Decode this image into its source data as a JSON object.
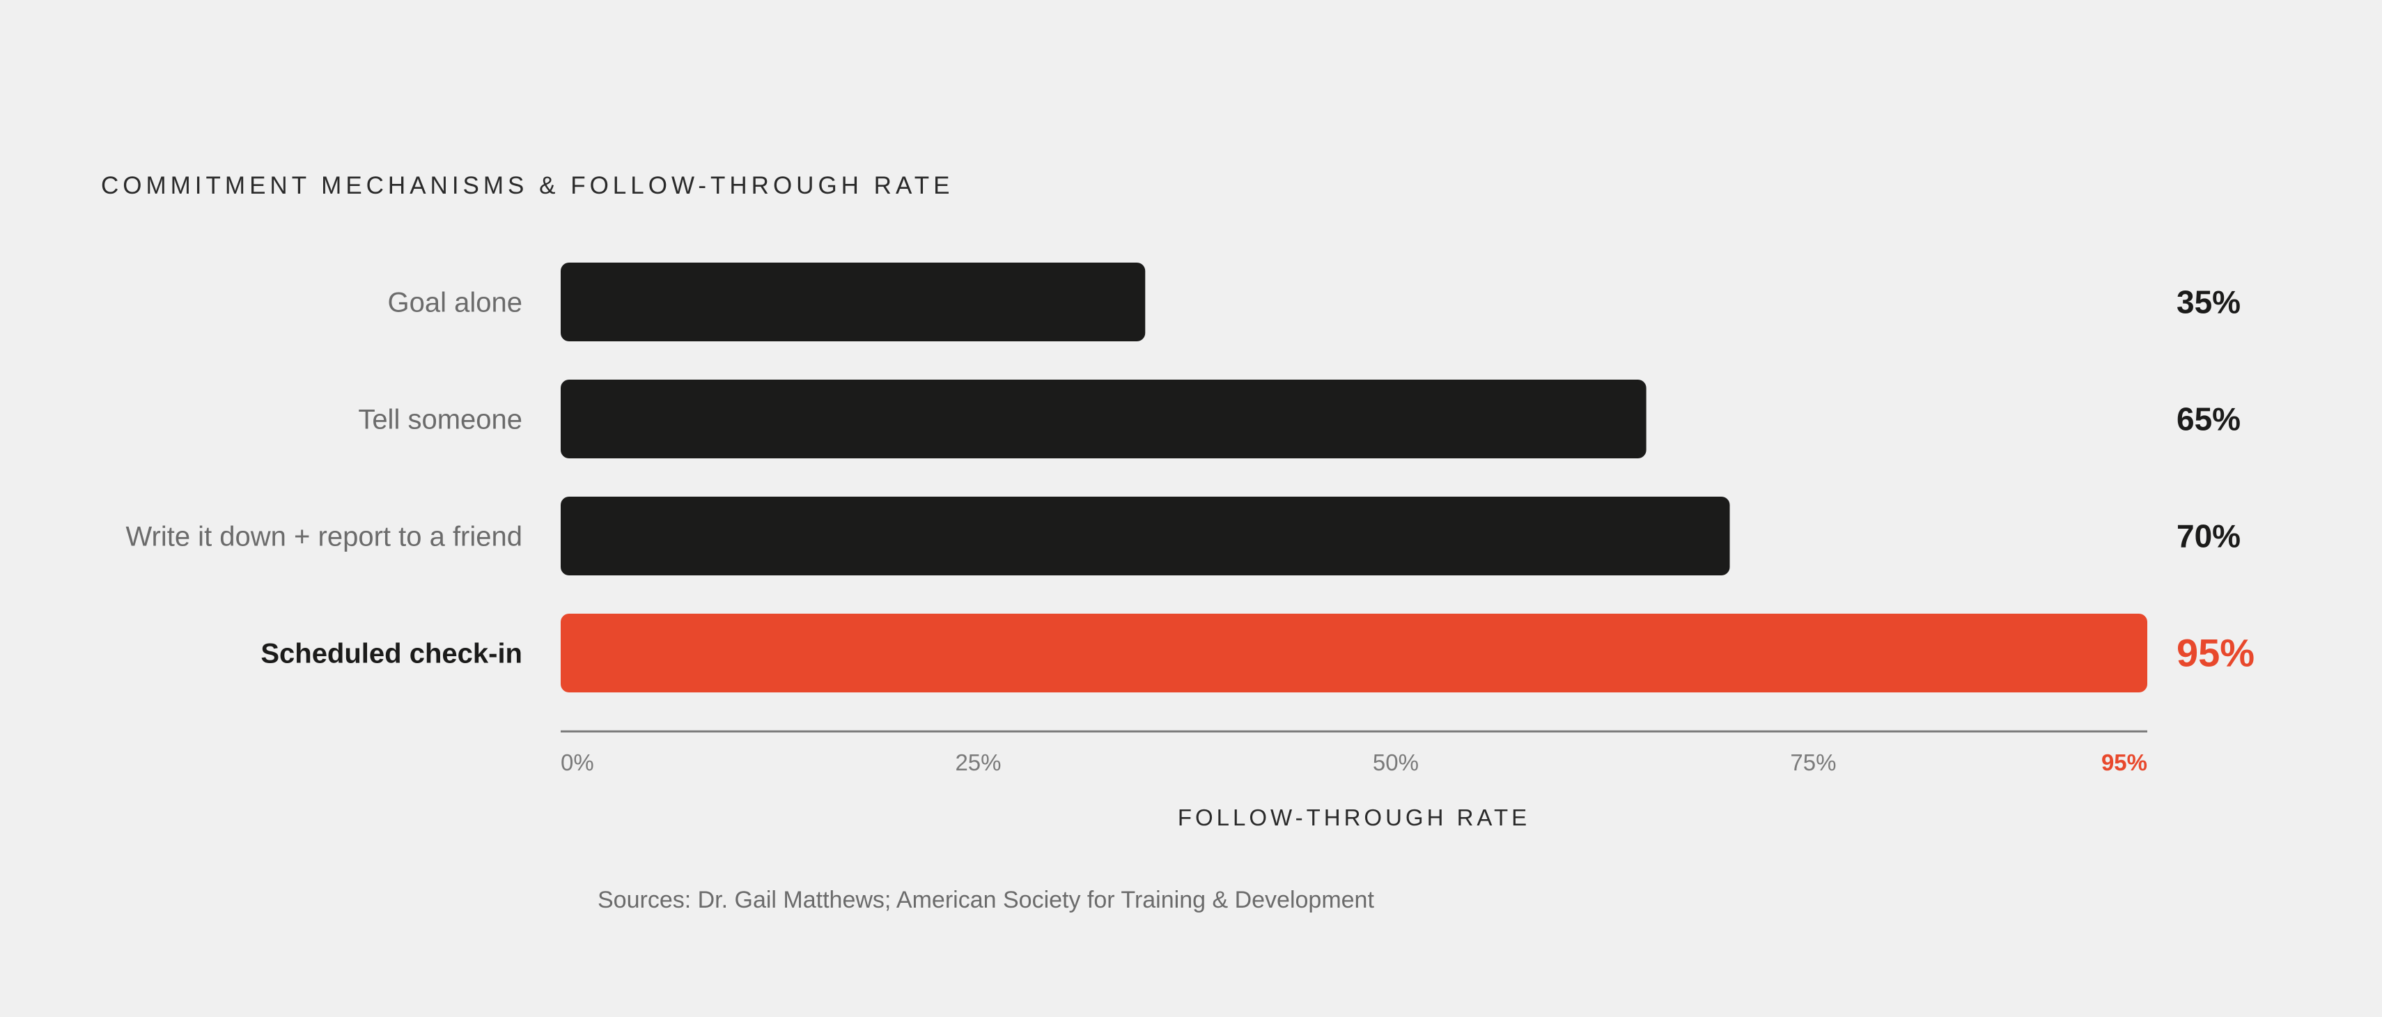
{
  "chart_data": {
    "type": "bar",
    "orientation": "horizontal",
    "title": "COMMITMENT MECHANISMS & FOLLOW-THROUGH RATE",
    "xlabel": "FOLLOW-THROUGH RATE",
    "ylabel": "",
    "categories": [
      "Goal alone",
      "Tell someone",
      "Write it down + report to a friend",
      "Scheduled check-in"
    ],
    "values": [
      35,
      65,
      70,
      95
    ],
    "value_labels": [
      "35%",
      "65%",
      "70%",
      "95%"
    ],
    "highlight_index": 3,
    "xlim": [
      0,
      95
    ],
    "xticks": [
      0,
      25,
      50,
      75,
      95
    ],
    "xtick_labels": [
      "0%",
      "25%",
      "50%",
      "75%",
      "95%"
    ],
    "grid": false,
    "legend": "none",
    "source": "Sources: Dr. Gail Matthews; American Society for Training & Development",
    "colors": {
      "background": "#f0f0f0",
      "bar": "#1b1b1a",
      "highlight": "#e8482c",
      "category_label": "#6b6b6b",
      "category_label_highlight": "#1b1b1a",
      "value_label": "#1b1b1a",
      "axis": "#7a7a7a",
      "tick_label": "#7a7a7a",
      "title": "#2a2a2a",
      "source": "#6b6b6b"
    }
  }
}
